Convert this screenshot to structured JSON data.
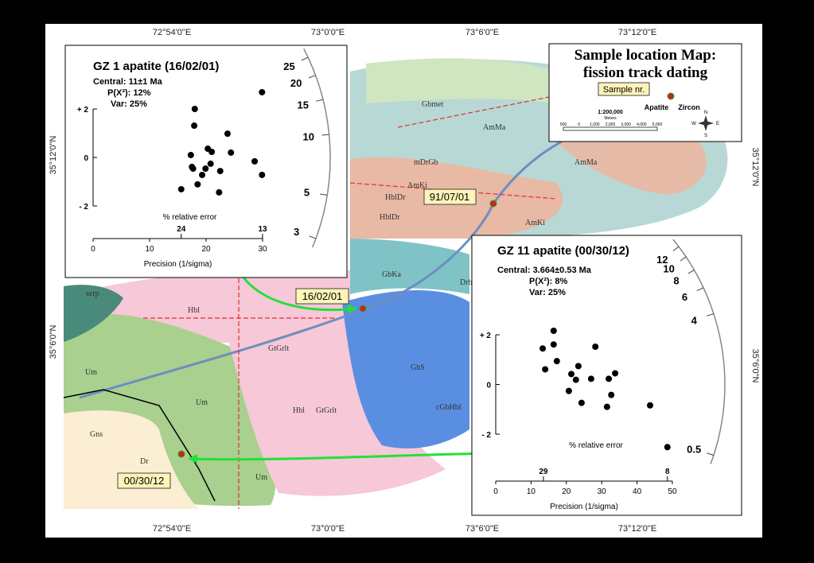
{
  "map": {
    "top_coords": [
      "72°54'0\"E",
      "73°0'0\"E",
      "73°6'0\"E",
      "73°12'0\"E"
    ],
    "bottom_coords": [
      "72°54'0\"E",
      "73°0'0\"E",
      "73°6'0\"E",
      "73°12'0\"E"
    ],
    "left_coords": [
      "35°12'0\"N",
      "35°6'0\"N"
    ],
    "right_coords": [
      "35°12'0\"N",
      "35°6'0\"N"
    ],
    "units": [
      "Gbmet",
      "AmMa",
      "mDrGb",
      "AmMa",
      "AmKi",
      "HblDr",
      "HblDr",
      "AmKi",
      "GbKa",
      "Drb",
      "serp",
      "Hbl",
      "GtGrlt",
      "GbS",
      "cGbHbl",
      "Um",
      "Um",
      "Um",
      "Gns",
      "Dr",
      "GtGrlt",
      "Hbl"
    ],
    "samples": [
      "91/07/01",
      "16/02/01",
      "00/30/12"
    ]
  },
  "legend": {
    "title_line1": "Sample location Map:",
    "title_line2": "fission track dating",
    "sample_label": "Sample nr.",
    "apatite": "Apatite",
    "zircon": "Zircon",
    "scale": "1:200,000",
    "units": "Meters",
    "scale_ticks": [
      "500",
      "0",
      "1,000",
      "2,000",
      "3,000",
      "4,000",
      "5,000"
    ],
    "compass": [
      "N",
      "S",
      "E",
      "W"
    ]
  },
  "plots": [
    {
      "title": "GZ 1 apatite (16/02/01)",
      "central": "Central: 11±1 Ma",
      "p_chi": "P(X²): 12%",
      "var": "Var: 25%",
      "x_label": "Precision (1/sigma)",
      "error_label": "% relative error",
      "xlim": [
        0,
        30
      ],
      "ylim": [
        -2,
        2
      ],
      "xticks": [
        0,
        10,
        20,
        30
      ],
      "yticks": [
        {
          "value": 2,
          "label": "+ 2"
        },
        0,
        {
          "value": -2,
          "label": "- 2"
        }
      ],
      "arc_ticks": [
        25,
        20,
        15,
        10,
        5,
        3
      ],
      "range_labels": [
        {
          "x": 15.6,
          "label": "24"
        },
        {
          "x": 30,
          "label": "13"
        }
      ],
      "points": [
        [
          18.0,
          2.0
        ],
        [
          17.9,
          1.31
        ],
        [
          29.9,
          2.69
        ],
        [
          23.8,
          0.98
        ],
        [
          20.3,
          0.36
        ],
        [
          21.0,
          0.23
        ],
        [
          24.4,
          0.2
        ],
        [
          17.3,
          0.1
        ],
        [
          17.5,
          -0.39
        ],
        [
          17.7,
          -0.46
        ],
        [
          20.8,
          -0.26
        ],
        [
          19.9,
          -0.46
        ],
        [
          22.5,
          -0.56
        ],
        [
          19.3,
          -0.72
        ],
        [
          18.5,
          -1.11
        ],
        [
          15.6,
          -1.31
        ],
        [
          22.3,
          -1.44
        ],
        [
          28.6,
          -0.16
        ],
        [
          29.9,
          -0.72
        ]
      ]
    },
    {
      "title": "GZ 11 apatite (00/30/12)",
      "central": "Central: 3.664±0.53 Ma",
      "p_chi": "P(X²): 8%",
      "var": "Var: 25%",
      "x_label": "Precision (1/sigma)",
      "error_label": "% relative error",
      "xlim": [
        0,
        50
      ],
      "ylim": [
        -2,
        2
      ],
      "xticks": [
        0,
        10,
        20,
        30,
        40,
        50
      ],
      "yticks": [
        {
          "value": 2,
          "label": "+ 2"
        },
        0,
        {
          "value": -2,
          "label": "- 2"
        }
      ],
      "arc_ticks": [
        12,
        10,
        8,
        6,
        4,
        0.5
      ],
      "range_labels": [
        {
          "x": 13.5,
          "label": "29"
        },
        {
          "x": 48.6,
          "label": "8"
        }
      ],
      "points": [
        [
          16.4,
          2.16
        ],
        [
          13.3,
          1.45
        ],
        [
          16.4,
          1.61
        ],
        [
          17.3,
          0.94
        ],
        [
          14.0,
          0.61
        ],
        [
          28.2,
          1.52
        ],
        [
          21.4,
          0.42
        ],
        [
          23.4,
          0.74
        ],
        [
          22.7,
          0.19
        ],
        [
          27.0,
          0.23
        ],
        [
          32.0,
          0.23
        ],
        [
          33.8,
          0.45
        ],
        [
          20.7,
          -0.26
        ],
        [
          24.3,
          -0.74
        ],
        [
          32.7,
          -0.42
        ],
        [
          31.5,
          -0.9
        ],
        [
          43.7,
          -0.84
        ],
        [
          48.6,
          -2.52
        ]
      ]
    }
  ]
}
